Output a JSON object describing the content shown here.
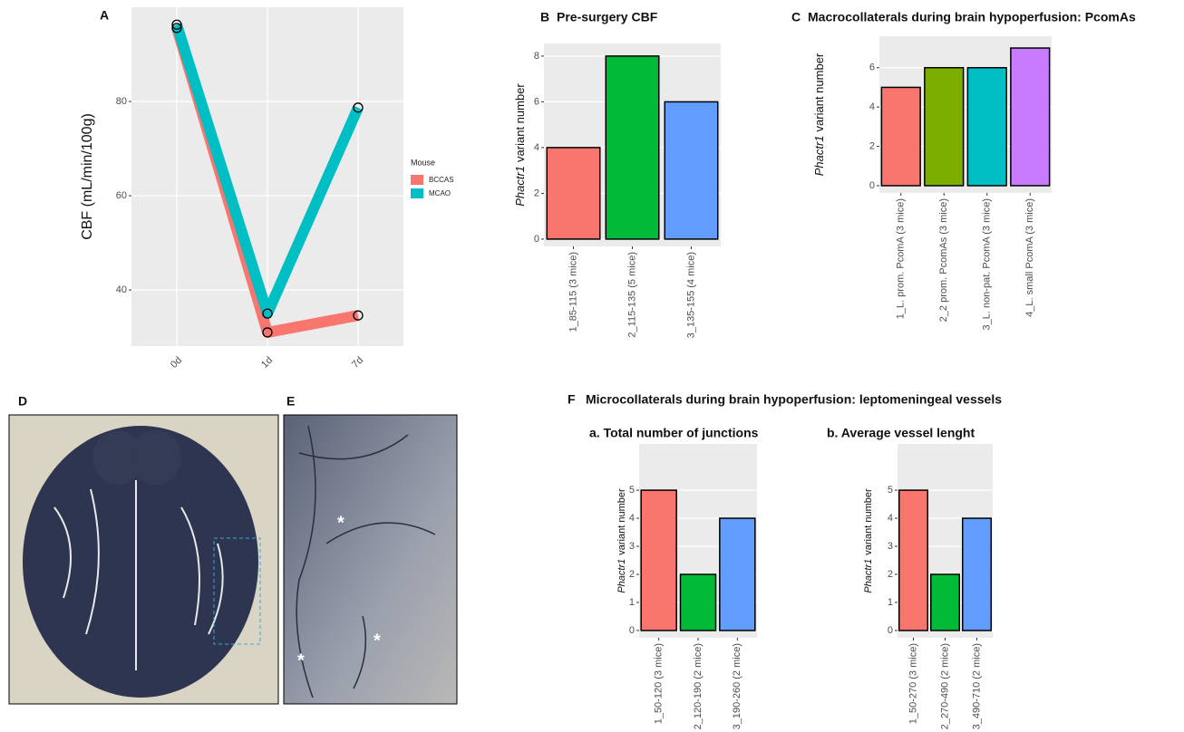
{
  "chart_data": [
    {
      "type": "line",
      "panel": "A",
      "categories": [
        "0d",
        "1d",
        "7d"
      ],
      "ylabel": "CBF (mL/min/100g)",
      "legend_title": "Mouse",
      "series": [
        {
          "name": "BCCAS",
          "color": "#f8766d",
          "values": [
            95.6,
            31,
            34.6
          ]
        },
        {
          "name": "MCAO",
          "color": "#00bfc4",
          "values": [
            96.3,
            35,
            78.7
          ]
        }
      ],
      "ylim": [
        28.1,
        100
      ],
      "yticks": [
        40,
        60,
        80
      ],
      "grid": true
    },
    {
      "type": "bar",
      "panel": "B",
      "title": "Pre-surgery CBF",
      "ylabel": [
        "Phactr1",
        "variant number"
      ],
      "categories": [
        "1_85-115 (3 mice)",
        "2_115-135 (5 mice)",
        "3_135-155 (4 mice)"
      ],
      "values": [
        4,
        8,
        6
      ],
      "colors": [
        "#f8766d",
        "#00ba38",
        "#619cff"
      ],
      "ylim": [
        -0.32,
        8.55
      ],
      "yticks": [
        0,
        2,
        4,
        6,
        8
      ],
      "grid": true
    },
    {
      "type": "bar",
      "panel": "C",
      "title": "Macrocollaterals during brain hypoperfusion: PcomAs",
      "ylabel": [
        "Phactr1",
        "variant number"
      ],
      "categories": [
        "1_L. prom. PcomA (3 mice)",
        "2_2 prom. PcomAs (3 mice)",
        "3_L. non-pat. PcomA (3 mice)",
        "4_L. small  PcomA (3 mice)"
      ],
      "values": [
        5,
        6,
        6,
        7
      ],
      "colors": [
        "#f8766d",
        "#7cae00",
        "#00bfc4",
        "#c77cff"
      ],
      "ylim": [
        -0.37,
        7.6
      ],
      "yticks": [
        0,
        2,
        4,
        6
      ],
      "grid": true
    },
    {
      "type": "bar",
      "title": "a. Total number of junctions",
      "ylabel": [
        "Phactr1",
        "variant number"
      ],
      "categories": [
        "1_50-120 (3 mice)",
        "2_120-190 (2 mice)",
        "3_190-260 (2 mice)"
      ],
      "values": [
        5,
        2,
        4
      ],
      "colors": [
        "#f8766d",
        "#00ba38",
        "#619cff"
      ],
      "ylim": [
        -0.26,
        6.65
      ],
      "yticks": [
        0,
        1,
        2,
        3,
        4,
        5
      ],
      "grid": true
    },
    {
      "type": "bar",
      "title": "b. Average vessel lenght",
      "ylabel": [
        "Phactr1",
        "variant number"
      ],
      "categories": [
        "1_50-270 (3 mice)",
        "2_270-490 (2 mice)",
        "3_490-710 (2 mice)"
      ],
      "values": [
        5,
        2,
        4
      ],
      "colors": [
        "#f8766d",
        "#00ba38",
        "#619cff"
      ],
      "ylim": [
        -0.26,
        6.65
      ],
      "yticks": [
        0,
        1,
        2,
        3,
        4,
        5
      ],
      "grid": true
    }
  ],
  "panels": {
    "d_label": "D",
    "e_label": "E",
    "e_marks": [
      "*",
      "*",
      "*"
    ],
    "f_label": "F",
    "f_title": "Microcollaterals during brain hypoperfusion: leptomeningeal vessels"
  }
}
